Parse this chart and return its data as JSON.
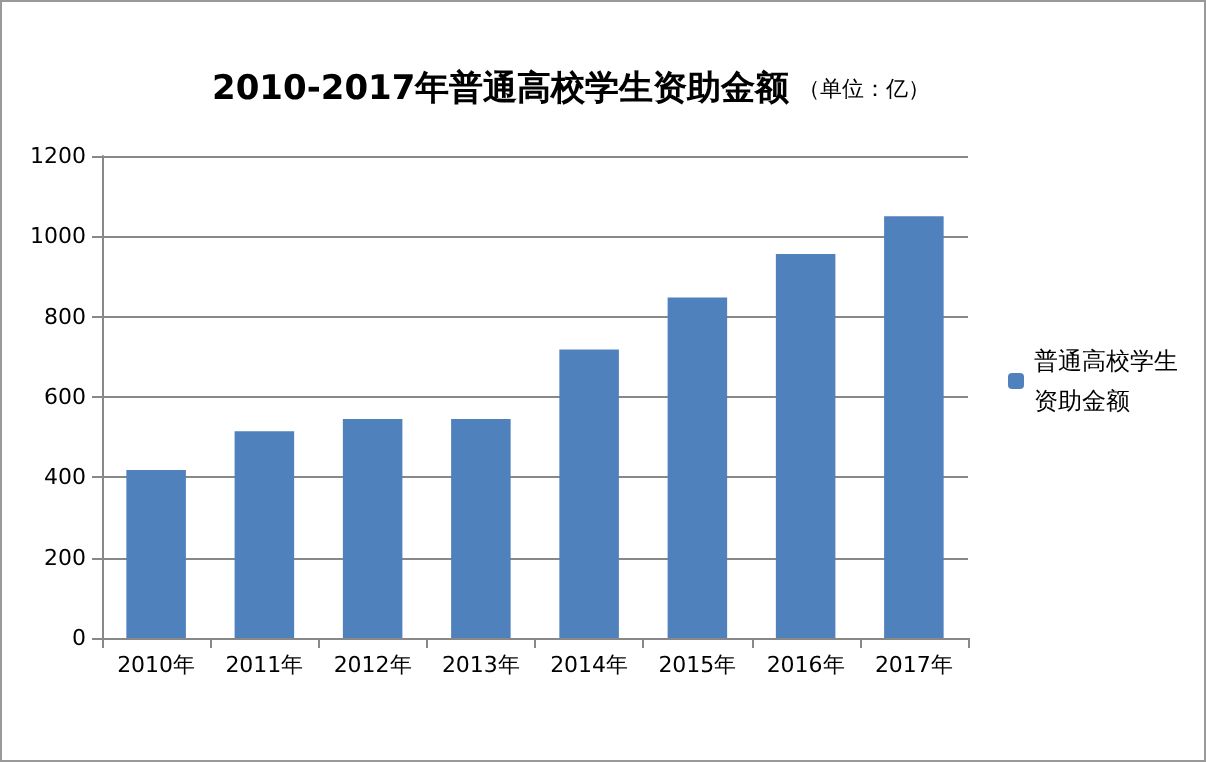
{
  "chart_data": {
    "type": "bar",
    "title": "2010-2017年普通高校学生资助金额",
    "subtitle": "（单位：亿）",
    "categories": [
      "2010年",
      "2011年",
      "2012年",
      "2013年",
      "2014年",
      "2015年",
      "2016年",
      "2017年"
    ],
    "series": [
      {
        "name": "普通高校学生资助金额",
        "color": "#4f81bd",
        "values": [
          418,
          515,
          545,
          545,
          718,
          848,
          956,
          1050
        ]
      }
    ],
    "ylim": [
      0,
      1200
    ],
    "yticks": [
      0,
      200,
      400,
      600,
      800,
      1000,
      1200
    ],
    "grid": "y",
    "legend": "right"
  }
}
